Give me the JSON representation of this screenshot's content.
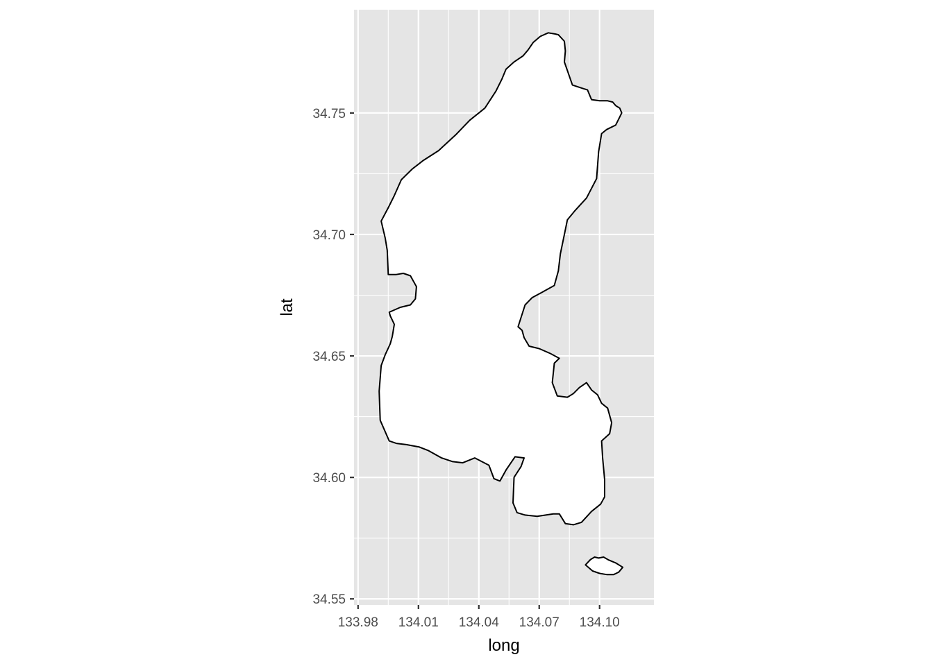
{
  "chart_data": {
    "type": "map",
    "xlabel": "long",
    "ylabel": "lat",
    "xlim": [
      133.978,
      134.127
    ],
    "ylim": [
      34.5475,
      34.7925
    ],
    "x_ticks": [
      133.98,
      134.01,
      134.04,
      134.07,
      134.1
    ],
    "x_tick_labels": [
      "133.98",
      "134.01",
      "134.04",
      "134.07",
      "134.10"
    ],
    "y_ticks": [
      34.55,
      34.6,
      34.65,
      34.7,
      34.75
    ],
    "y_tick_labels": [
      "34.55",
      "34.60",
      "34.65",
      "34.70",
      "34.75"
    ],
    "grid": true,
    "panel_background": "#e5e5e5",
    "grid_color": "#ffffff",
    "polygon_fill": "#ffffff",
    "polygon_stroke": "#000000",
    "polygons": [
      {
        "points": [
          [
            134.0745,
            34.783
          ],
          [
            134.078,
            34.7825
          ],
          [
            134.0795,
            34.7822
          ],
          [
            134.0825,
            34.7795
          ],
          [
            134.083,
            34.7755
          ],
          [
            134.0825,
            34.771
          ],
          [
            134.0865,
            34.7615
          ],
          [
            134.092,
            34.76
          ],
          [
            134.094,
            34.7595
          ],
          [
            134.096,
            34.7555
          ],
          [
            134.1,
            34.755
          ],
          [
            134.104,
            34.755
          ],
          [
            134.1065,
            34.7545
          ],
          [
            134.108,
            34.753
          ],
          [
            134.11,
            34.752
          ],
          [
            134.111,
            34.75
          ],
          [
            134.108,
            34.745
          ],
          [
            134.1035,
            34.7432
          ],
          [
            134.101,
            34.7415
          ],
          [
            134.0995,
            34.734
          ],
          [
            134.0985,
            34.723
          ],
          [
            134.0935,
            34.715
          ],
          [
            134.088,
            34.71
          ],
          [
            134.084,
            34.706
          ],
          [
            134.0825,
            34.7
          ],
          [
            134.0805,
            34.692
          ],
          [
            134.0795,
            34.685
          ],
          [
            134.0775,
            34.679
          ],
          [
            134.071,
            34.676
          ],
          [
            134.0665,
            34.674
          ],
          [
            134.063,
            34.671
          ],
          [
            134.0595,
            34.662
          ],
          [
            134.0615,
            34.6605
          ],
          [
            134.0625,
            34.6575
          ],
          [
            134.065,
            34.654
          ],
          [
            134.07,
            34.653
          ],
          [
            134.0755,
            34.651
          ],
          [
            134.08,
            34.649
          ],
          [
            134.0775,
            34.647
          ],
          [
            134.0765,
            34.639
          ],
          [
            134.079,
            34.6335
          ],
          [
            134.084,
            34.633
          ],
          [
            134.087,
            34.6345
          ],
          [
            134.09,
            34.637
          ],
          [
            134.0935,
            34.639
          ],
          [
            134.096,
            34.636
          ],
          [
            134.099,
            34.634
          ],
          [
            134.101,
            34.6305
          ],
          [
            134.104,
            34.6285
          ],
          [
            134.106,
            34.6225
          ],
          [
            134.105,
            34.618
          ],
          [
            134.101,
            34.615
          ],
          [
            134.1015,
            34.608
          ],
          [
            134.1025,
            34.599
          ],
          [
            134.1025,
            34.592
          ],
          [
            134.1005,
            34.589
          ],
          [
            134.096,
            34.586
          ],
          [
            134.091,
            34.5815
          ],
          [
            134.087,
            34.5805
          ],
          [
            134.083,
            34.581
          ],
          [
            134.08,
            34.585
          ],
          [
            134.077,
            34.585
          ],
          [
            134.069,
            34.584
          ],
          [
            134.063,
            34.5845
          ],
          [
            134.059,
            34.5855
          ],
          [
            134.057,
            34.5895
          ],
          [
            134.0575,
            34.6
          ],
          [
            134.061,
            34.6045
          ],
          [
            134.0625,
            34.608
          ],
          [
            134.058,
            34.6085
          ],
          [
            134.0535,
            34.603
          ],
          [
            134.0505,
            34.5985
          ],
          [
            134.0475,
            34.5995
          ],
          [
            134.045,
            34.605
          ],
          [
            134.038,
            34.608
          ],
          [
            134.032,
            34.606
          ],
          [
            134.027,
            34.6065
          ],
          [
            134.0215,
            34.608
          ],
          [
            134.015,
            34.611
          ],
          [
            134.0105,
            34.6125
          ],
          [
            134.004,
            34.6135
          ],
          [
            133.999,
            34.614
          ],
          [
            133.9955,
            34.615
          ],
          [
            133.991,
            34.6235
          ],
          [
            133.9905,
            34.6355
          ],
          [
            133.9915,
            34.646
          ],
          [
            133.9935,
            34.6505
          ],
          [
            133.996,
            34.655
          ],
          [
            133.997,
            34.658
          ],
          [
            133.998,
            34.663
          ],
          [
            133.996,
            34.6665
          ],
          [
            133.9955,
            34.668
          ],
          [
            134.001,
            34.67
          ],
          [
            134.006,
            34.671
          ],
          [
            134.0085,
            34.6735
          ],
          [
            134.009,
            34.6785
          ],
          [
            134.006,
            34.683
          ],
          [
            134.0025,
            34.684
          ],
          [
            133.999,
            34.6835
          ],
          [
            133.995,
            34.6835
          ],
          [
            133.9945,
            34.6935
          ],
          [
            133.9935,
            34.6985
          ],
          [
            133.9915,
            34.7055
          ],
          [
            133.995,
            34.711
          ],
          [
            133.998,
            34.716
          ],
          [
            134.0015,
            34.7225
          ],
          [
            134.007,
            34.727
          ],
          [
            134.0125,
            34.7305
          ],
          [
            134.02,
            34.7345
          ],
          [
            134.0285,
            34.741
          ],
          [
            134.0355,
            34.747
          ],
          [
            134.043,
            34.752
          ],
          [
            134.0485,
            34.759
          ],
          [
            134.0515,
            34.764
          ],
          [
            134.0535,
            34.768
          ],
          [
            134.0575,
            34.771
          ],
          [
            134.062,
            34.7735
          ],
          [
            134.0645,
            34.776
          ],
          [
            134.067,
            34.779
          ],
          [
            134.0705,
            34.7815
          ]
        ]
      },
      {
        "points": [
          [
            134.093,
            34.564
          ],
          [
            134.0965,
            34.5615
          ],
          [
            134.1,
            34.5605
          ],
          [
            134.1035,
            34.56
          ],
          [
            134.107,
            34.56
          ],
          [
            134.1095,
            34.561
          ],
          [
            134.1115,
            34.563
          ],
          [
            134.108,
            34.5648
          ],
          [
            134.1045,
            34.566
          ],
          [
            134.102,
            34.5672
          ],
          [
            134.0995,
            34.5668
          ],
          [
            134.0975,
            34.5672
          ],
          [
            134.0955,
            34.5662
          ]
        ]
      }
    ]
  }
}
